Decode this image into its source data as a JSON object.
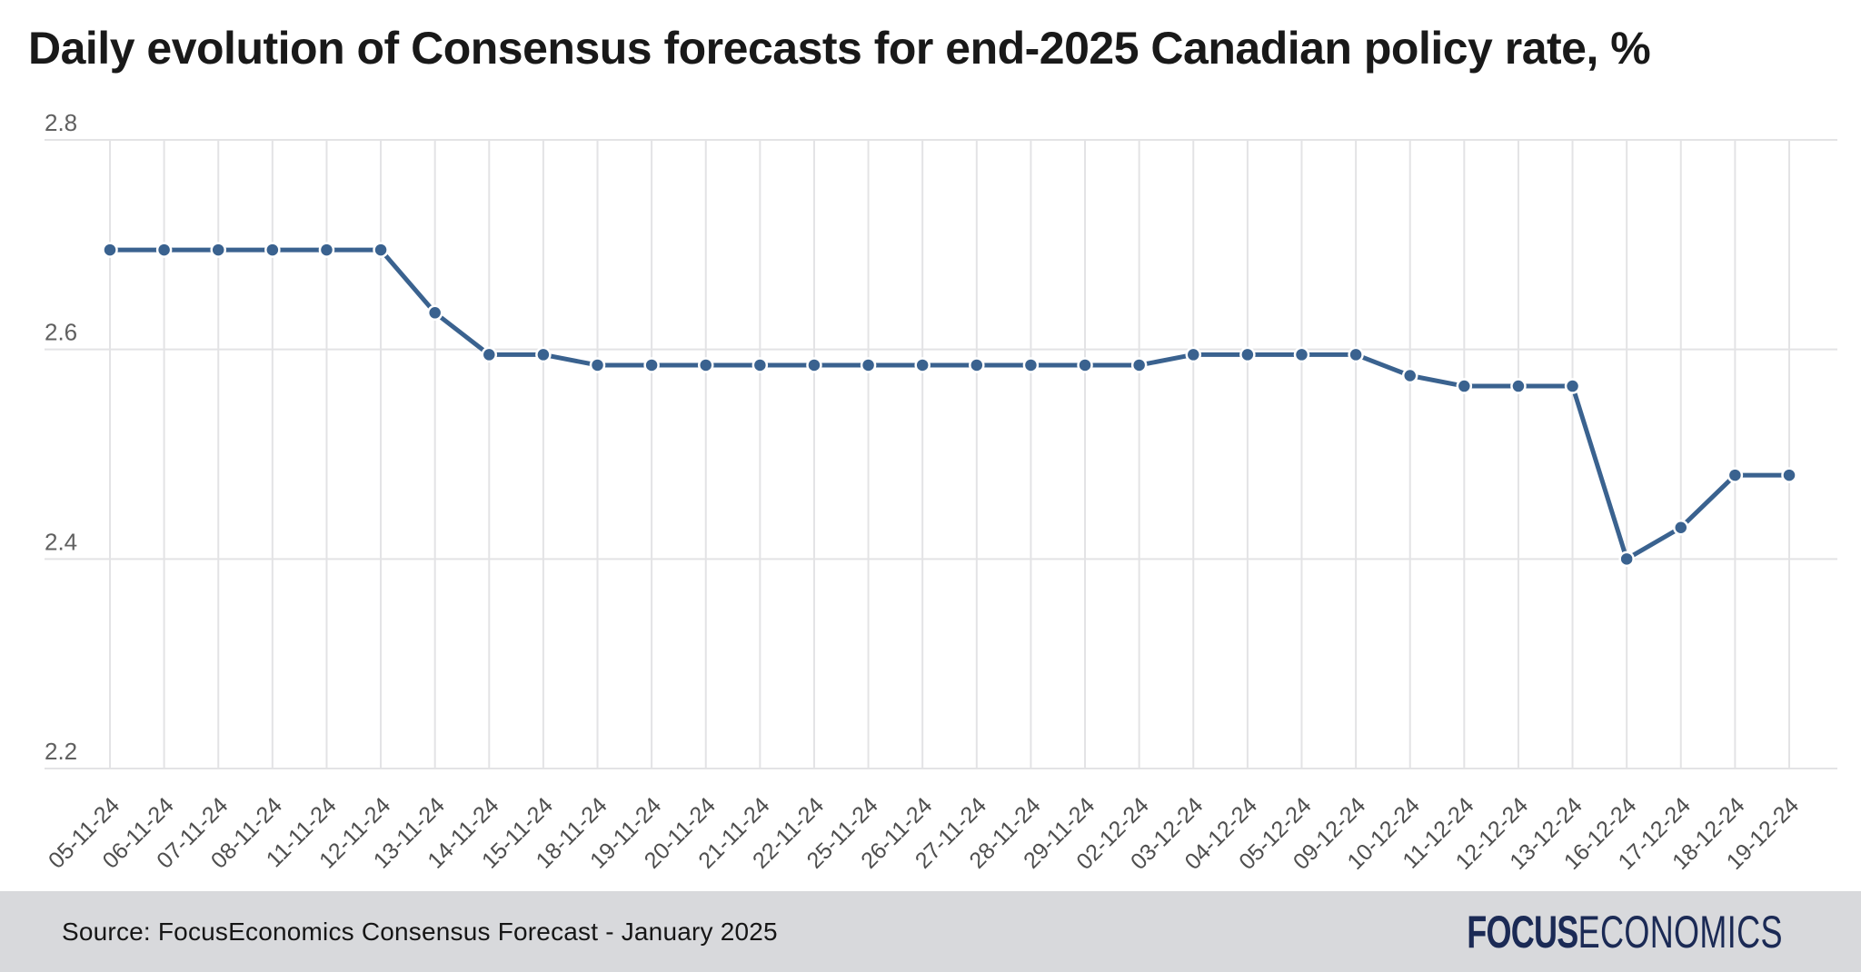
{
  "title": "Daily evolution of Consensus forecasts for end-2025 Canadian policy rate, %",
  "colors": {
    "background": "#ffffff",
    "line": "#3a628f",
    "marker_fill": "#3a628f",
    "marker_halo": "#ffffff",
    "grid": "#e3e3e5",
    "y_tick_label": "#606060",
    "x_tick_label": "#4e4e4e",
    "title_text": "#191919",
    "footer_bg": "#d8d9dc",
    "source_text": "#161616",
    "logo_navy": "#1b2a55"
  },
  "chart_data": {
    "type": "line",
    "title": "Daily evolution of Consensus forecasts for end-2025 Canadian policy rate, %",
    "xlabel": "",
    "ylabel": "%",
    "ylim": [
      2.2,
      2.8
    ],
    "yticks": [
      2.8,
      2.6,
      2.4,
      2.2
    ],
    "grid": "on",
    "legend": "none",
    "marker": "circle",
    "categories": [
      "05-11-24",
      "06-11-24",
      "07-11-24",
      "08-11-24",
      "11-11-24",
      "12-11-24",
      "13-11-24",
      "14-11-24",
      "15-11-24",
      "18-11-24",
      "19-11-24",
      "20-11-24",
      "21-11-24",
      "22-11-24",
      "25-11-24",
      "26-11-24",
      "27-11-24",
      "28-11-24",
      "29-11-24",
      "02-12-24",
      "03-12-24",
      "04-12-24",
      "05-12-24",
      "09-12-24",
      "10-12-24",
      "11-12-24",
      "12-12-24",
      "13-12-24",
      "16-12-24",
      "17-12-24",
      "18-12-24",
      "19-12-24"
    ],
    "values": [
      2.695,
      2.695,
      2.695,
      2.695,
      2.695,
      2.695,
      2.635,
      2.595,
      2.595,
      2.585,
      2.585,
      2.585,
      2.585,
      2.585,
      2.585,
      2.585,
      2.585,
      2.585,
      2.585,
      2.585,
      2.595,
      2.595,
      2.595,
      2.595,
      2.575,
      2.565,
      2.565,
      2.565,
      2.4,
      2.43,
      2.48,
      2.48
    ]
  },
  "footer": {
    "source": "Source: FocusEconomics Consensus Forecast - January 2025",
    "logo_bold": "FOCUS",
    "logo_light": "ECONOMICS"
  }
}
